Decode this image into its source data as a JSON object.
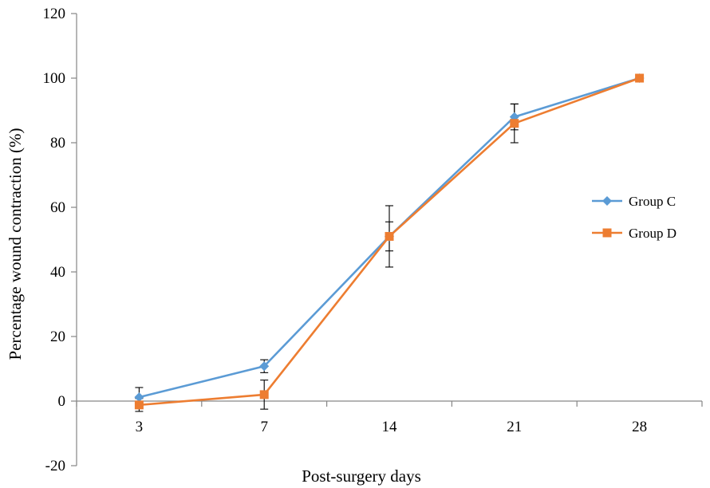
{
  "chart_data": {
    "type": "line",
    "title": "",
    "xlabel": "Post-surgery days",
    "ylabel": "Percentage wound contraction (%)",
    "categories": [
      "3",
      "7",
      "14",
      "21",
      "28"
    ],
    "ylim": [
      -20,
      120
    ],
    "yticks": [
      -20,
      0,
      20,
      40,
      60,
      80,
      100,
      120
    ],
    "grid": false,
    "legend_position": "right",
    "series": [
      {
        "name": "Group C",
        "values": [
          1.2,
          10.8,
          51.0,
          88.0,
          100.0
        ],
        "error": [
          3.0,
          2.0,
          4.5,
          4.0,
          0
        ],
        "color": "#5b9bd5",
        "marker": "diamond"
      },
      {
        "name": "Group D",
        "values": [
          -1.2,
          2.0,
          51.0,
          86.0,
          100.0
        ],
        "error": [
          2.0,
          4.5,
          9.5,
          6.0,
          0
        ],
        "color": "#ed7d31",
        "marker": "square"
      }
    ]
  }
}
